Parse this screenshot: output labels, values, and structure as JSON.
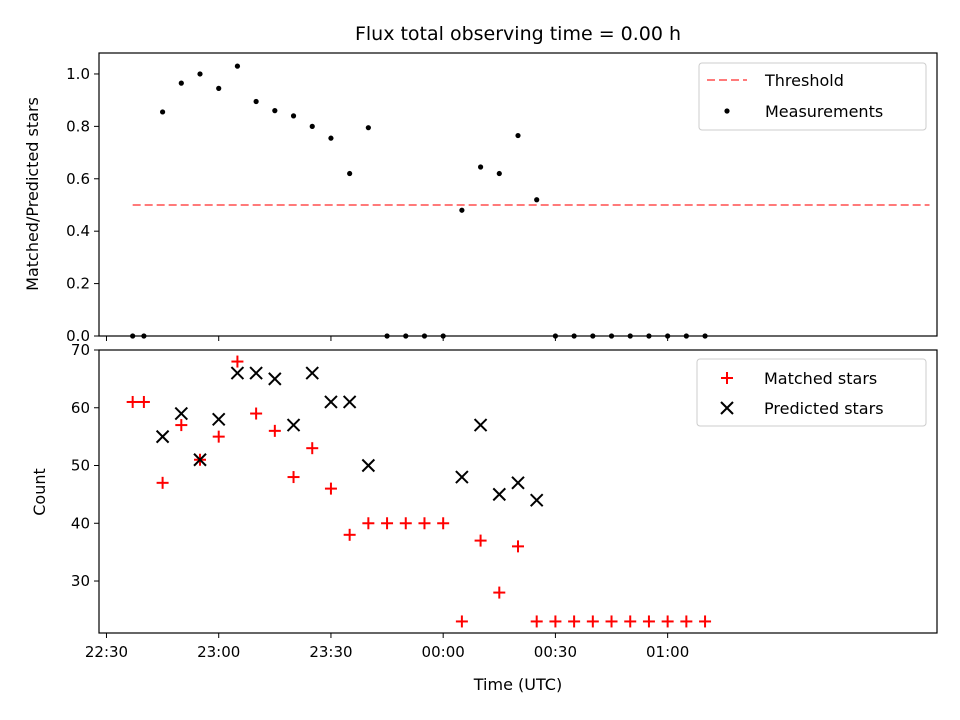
{
  "chart_data": [
    {
      "type": "scatter",
      "title": "Flux total observing time = 0.00 h",
      "xlabel": "",
      "ylabel": "Matched/Predicted stars",
      "xlim": [
        "22:28",
        "02:12"
      ],
      "ylim": [
        0,
        1.08
      ],
      "x_ticks": [
        "22:30",
        "23:00",
        "23:30",
        "00:00",
        "00:30",
        "01:00"
      ],
      "y_ticks": [
        0.0,
        0.2,
        0.4,
        0.6,
        0.8,
        1.0
      ],
      "y_tick_labels": [
        "0.0",
        "0.2",
        "0.4",
        "0.6",
        "0.8",
        "1.0"
      ],
      "legend_position": "upper-right",
      "grid": false,
      "series": [
        {
          "name": "Threshold",
          "kind": "dashed-line",
          "color": "#ff7a7a",
          "x": [
            "22:37",
            "02:10"
          ],
          "y": [
            0.5,
            0.5
          ]
        },
        {
          "name": "Measurements",
          "kind": "scatter-dot",
          "color": "#000000",
          "x": [
            "22:37",
            "22:40",
            "22:45",
            "22:50",
            "22:55",
            "23:00",
            "23:05",
            "23:10",
            "23:15",
            "23:20",
            "23:25",
            "23:30",
            "23:35",
            "23:40",
            "23:45",
            "23:50",
            "23:55",
            "00:00",
            "00:05",
            "00:10",
            "00:15",
            "00:20",
            "00:25",
            "00:30",
            "00:35",
            "00:40",
            "00:45",
            "00:50",
            "00:55",
            "01:00",
            "01:05",
            "01:10"
          ],
          "y": [
            0.0,
            0.0,
            0.855,
            0.965,
            1.0,
            0.945,
            1.03,
            0.895,
            0.86,
            0.84,
            0.8,
            0.755,
            0.62,
            0.795,
            0.0,
            0.0,
            0.0,
            0.0,
            0.48,
            0.645,
            0.62,
            0.765,
            0.52,
            0.0,
            0.0,
            0.0,
            0.0,
            0.0,
            0.0,
            0.0,
            0.0,
            0.0
          ]
        }
      ]
    },
    {
      "type": "scatter",
      "title": "",
      "xlabel": "Time (UTC)",
      "ylabel": "Count",
      "xlim": [
        "22:28",
        "02:12"
      ],
      "ylim": [
        21,
        70
      ],
      "x_ticks": [
        "22:30",
        "23:00",
        "23:30",
        "00:00",
        "00:30",
        "01:00"
      ],
      "y_ticks": [
        30,
        40,
        50,
        60,
        70
      ],
      "y_tick_labels": [
        "30",
        "40",
        "50",
        "60",
        "70"
      ],
      "legend_position": "upper-right",
      "grid": false,
      "series": [
        {
          "name": "Matched stars",
          "kind": "plus",
          "color": "#ff0000",
          "x": [
            "22:37",
            "22:40",
            "22:45",
            "22:50",
            "22:55",
            "23:00",
            "23:05",
            "23:10",
            "23:15",
            "23:20",
            "23:25",
            "23:30",
            "23:35",
            "23:40",
            "23:45",
            "23:50",
            "23:55",
            "00:00",
            "00:05",
            "00:10",
            "00:15",
            "00:20",
            "00:25",
            "00:30",
            "00:35",
            "00:40",
            "00:45",
            "00:50",
            "00:55",
            "01:00",
            "01:05",
            "01:10"
          ],
          "y": [
            61,
            61,
            47,
            57,
            51,
            55,
            68,
            59,
            56,
            48,
            53,
            46,
            38,
            40,
            40,
            40,
            40,
            40,
            23,
            37,
            28,
            36,
            23,
            23,
            23,
            23,
            23,
            23,
            23,
            23,
            23,
            23
          ]
        },
        {
          "name": "Predicted stars",
          "kind": "x",
          "color": "#000000",
          "x": [
            "22:45",
            "22:50",
            "22:55",
            "23:00",
            "23:05",
            "23:10",
            "23:15",
            "23:20",
            "23:25",
            "23:30",
            "23:35",
            "23:40",
            "00:05",
            "00:10",
            "00:15",
            "00:20",
            "00:25"
          ],
          "y": [
            55,
            59,
            51,
            58,
            66,
            66,
            65,
            57,
            66,
            61,
            61,
            50,
            48,
            57,
            45,
            47,
            44
          ]
        }
      ]
    }
  ]
}
